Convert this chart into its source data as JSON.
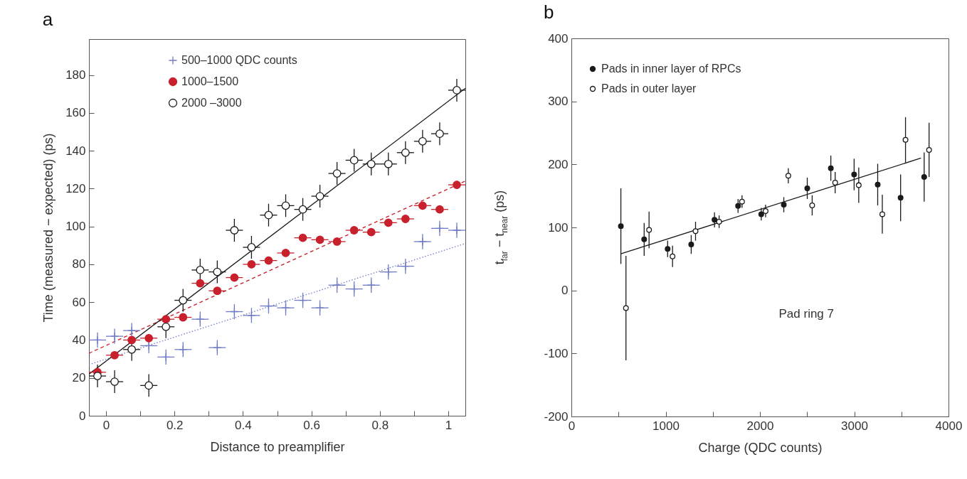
{
  "chart_data": [
    {
      "type": "scatter",
      "title": "a",
      "xlabel": "Distance to preamplifier",
      "ylabel": "Time (measured − expected) (ps)",
      "xlim": [
        -0.05,
        1.05
      ],
      "xticks": [
        0,
        {
          "value": 0.1,
          "label": null
        },
        0.2,
        {
          "value": 0.3,
          "label": null
        },
        0.4,
        {
          "value": 0.5,
          "label": null
        },
        0.6,
        {
          "value": 0.7,
          "label": null
        },
        0.8,
        {
          "value": 0.9,
          "label": null
        },
        1
      ],
      "ylim": [
        0,
        199
      ],
      "yticks": [
        0,
        20,
        40,
        60,
        80,
        100,
        120,
        140,
        160,
        180
      ],
      "legend": "top left",
      "x": [
        -0.025,
        0.025,
        0.075,
        0.125,
        0.175,
        0.225,
        0.275,
        0.325,
        0.375,
        0.425,
        0.475,
        0.525,
        0.575,
        0.625,
        0.675,
        0.725,
        0.775,
        0.825,
        0.875,
        0.925,
        0.975,
        1.025
      ],
      "series": [
        {
          "name": "500–1000 QDC counts",
          "color": "#6f7bc4",
          "marker": "cross",
          "values": [
            40,
            42,
            45,
            37,
            31,
            35,
            51,
            36,
            55,
            53,
            58,
            57,
            61,
            57,
            69,
            67,
            69,
            76,
            79,
            92,
            99,
            98
          ],
          "errors": [
            4,
            4,
            4,
            4,
            4,
            4,
            4,
            4,
            4,
            4,
            4,
            4,
            4,
            4,
            4,
            4,
            4,
            4,
            4,
            4,
            4,
            4
          ],
          "xerrors": [
            0.025,
            0.025,
            0.025,
            0.025,
            0.025,
            0.025,
            0.025,
            0.025,
            0.025,
            0.025,
            0.025,
            0.025,
            0.025,
            0.025,
            0.025,
            0.025,
            0.025,
            0.025,
            0.025,
            0.025,
            0.025,
            0.025
          ]
        },
        {
          "name": "1000–1500",
          "color": "#c8202c",
          "marker": "circle",
          "values": [
            23,
            32,
            40,
            41,
            51,
            52,
            70,
            66,
            73,
            80,
            82,
            86,
            94,
            93,
            92,
            98,
            97,
            102,
            104,
            111,
            109,
            122
          ],
          "errors": [
            2,
            2,
            2,
            2,
            2,
            2,
            2,
            2,
            2,
            2,
            2,
            2,
            2,
            2,
            2,
            2,
            2,
            2,
            2,
            2,
            2,
            2
          ],
          "xerrors": [
            0.025,
            0.025,
            0.025,
            0.025,
            0.025,
            0.025,
            0.025,
            0.025,
            0.025,
            0.025,
            0.025,
            0.025,
            0.025,
            0.025,
            0.025,
            0.025,
            0.025,
            0.025,
            0.025,
            0.025,
            0.025,
            0.025
          ]
        },
        {
          "name": "2000 –3000",
          "color": "#ffffff",
          "marker": "circle",
          "values": [
            21,
            18,
            35,
            16,
            47,
            61,
            77,
            76,
            98,
            89,
            106,
            111,
            109,
            116,
            128,
            135,
            133,
            133,
            139,
            145,
            149,
            172
          ],
          "errors": [
            6,
            6,
            6,
            6,
            6,
            6,
            6,
            6,
            6,
            6,
            6,
            6,
            6,
            6,
            6,
            6,
            6,
            6,
            6,
            6,
            6,
            6
          ],
          "xerrors": [
            0.025,
            0.025,
            0.025,
            0.025,
            0.025,
            0.025,
            0.025,
            0.025,
            0.025,
            0.025,
            0.025,
            0.025,
            0.025,
            0.025,
            0.025,
            0.025,
            0.025,
            0.025,
            0.025,
            0.025,
            0.025,
            0.025
          ]
        },
        {
          "type": "line",
          "color": "#6f7bc4",
          "line_style": "dotted",
          "x": [
            -0.05,
            1.05
          ],
          "values": [
            27,
            91
          ]
        },
        {
          "type": "line",
          "color": "#c8202c",
          "line_style": "dashed",
          "x": [
            -0.05,
            1.05
          ],
          "values": [
            33,
            124
          ]
        },
        {
          "type": "line",
          "color": "#1a1a1a",
          "line_style": "solid",
          "x": [
            -0.05,
            1.05
          ],
          "values": [
            22,
            173
          ]
        }
      ]
    },
    {
      "type": "scatter",
      "title": "b",
      "xlabel": "Charge (QDC counts)",
      "ylabel": "t$_{far}$ − t$_{near}$ (ps)",
      "xlim": [
        0,
        4000
      ],
      "xticks": [
        0,
        {
          "value": 500,
          "label": null
        },
        1000,
        {
          "value": 1500,
          "label": null
        },
        2000,
        {
          "value": 2500,
          "label": null
        },
        3000,
        {
          "value": 3500,
          "label": null
        },
        4000
      ],
      "ylim": [
        -200,
        400
      ],
      "yticks": [
        -200,
        -100,
        0,
        100,
        200,
        300,
        400
      ],
      "legend": "top left",
      "annotations": [
        "Pad ring 7"
      ],
      "series": [
        {
          "name": "Pads in inner layer of RPCs",
          "color": "#1a1a1a",
          "marker": "circle",
          "x": [
            525,
            772,
            1021,
            1271,
            1518,
            1768,
            2014,
            2253,
            2502,
            2752,
            2999,
            3249,
            3492,
            3742
          ],
          "values": [
            102,
            81,
            66,
            73,
            112,
            134,
            121,
            136,
            162,
            194,
            184,
            168,
            147,
            180
          ],
          "errors": [
            60,
            26,
            13,
            15,
            12,
            11,
            10,
            12,
            17,
            20,
            25,
            33,
            37,
            39
          ]
        },
        {
          "name": "Pads in outer layer",
          "color": "#ffffff",
          "marker": "circle",
          "x": [
            579,
            824,
            1073,
            1317,
            1567,
            1810,
            2060,
            2301,
            2554,
            2798,
            3048,
            3298,
            3544,
            3794
          ],
          "values": [
            -28,
            96,
            54,
            94,
            109,
            141,
            126,
            182,
            135,
            171,
            167,
            121,
            239,
            223
          ],
          "errors": [
            83,
            29,
            17,
            15,
            10,
            10,
            10,
            12,
            16,
            17,
            28,
            31,
            36,
            43
          ]
        },
        {
          "type": "line",
          "color": "#1a1a1a",
          "line_style": "solid",
          "x": [
            525,
            3708
          ],
          "values": [
            58,
            210
          ]
        }
      ]
    }
  ]
}
